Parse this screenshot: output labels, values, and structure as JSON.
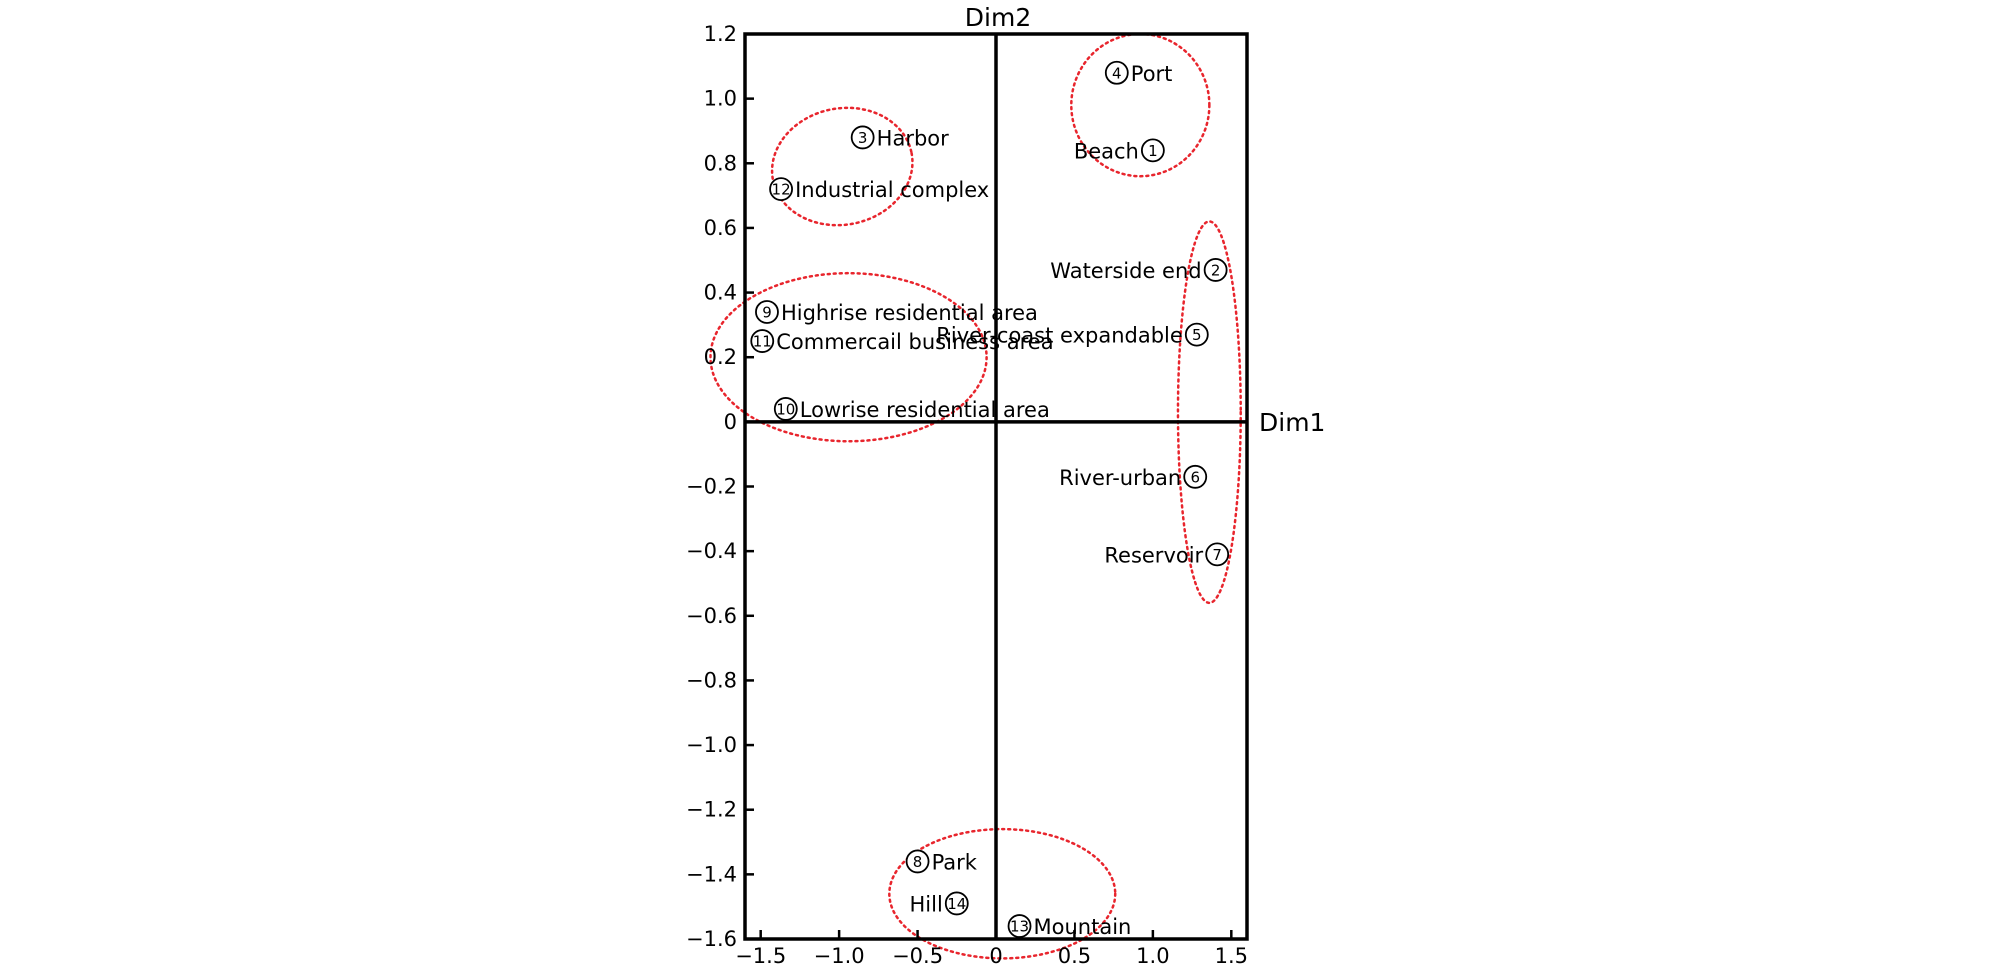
{
  "chart_data": {
    "type": "scatter",
    "title": "",
    "xlabel": "Dim1",
    "ylabel": "Dim2",
    "xlim": [
      -1.6,
      1.6
    ],
    "ylim": [
      -1.6,
      1.2
    ],
    "xticks": [
      "-1.5",
      "-1.0",
      "-0.5",
      "0",
      "0.5",
      "1.0",
      "1.5"
    ],
    "yticks": [
      "1.2",
      "1.0",
      "0.8",
      "0.6",
      "0.4",
      "0.2",
      "0",
      "-0.2",
      "-0.4",
      "-0.6",
      "-0.8",
      "-1.0",
      "-1.2",
      "-1.4",
      "-1.6"
    ],
    "points": [
      {
        "num": "1",
        "label": "Beach",
        "x": 1.0,
        "y": 0.84,
        "numSide": "right"
      },
      {
        "num": "2",
        "label": "Waterside end",
        "x": 1.4,
        "y": 0.47,
        "numSide": "right"
      },
      {
        "num": "3",
        "label": "Harbor",
        "x": -0.85,
        "y": 0.88,
        "numSide": "left"
      },
      {
        "num": "4",
        "label": "Port",
        "x": 0.77,
        "y": 1.08,
        "numSide": "left"
      },
      {
        "num": "5",
        "label": "River-coast expandable",
        "x": 1.28,
        "y": 0.27,
        "numSide": "right"
      },
      {
        "num": "6",
        "label": "River-urban",
        "x": 1.27,
        "y": -0.17,
        "numSide": "right"
      },
      {
        "num": "7",
        "label": "Reservoir",
        "x": 1.41,
        "y": -0.41,
        "numSide": "right"
      },
      {
        "num": "8",
        "label": "Park",
        "x": -0.5,
        "y": -1.36,
        "numSide": "left"
      },
      {
        "num": "9",
        "label": "Highrise residential area",
        "x": -1.46,
        "y": 0.34,
        "numSide": "left"
      },
      {
        "num": "10",
        "label": "Lowrise residential area",
        "x": -1.34,
        "y": 0.04,
        "numSide": "left"
      },
      {
        "num": "11",
        "label": "Commercail business area",
        "x": -1.49,
        "y": 0.25,
        "numSide": "left"
      },
      {
        "num": "12",
        "label": "Industrial complex",
        "x": -1.37,
        "y": 0.72,
        "numSide": "left"
      },
      {
        "num": "13",
        "label": "Mountain",
        "x": 0.15,
        "y": -1.56,
        "numSide": "left"
      },
      {
        "num": "14",
        "label": "Hill",
        "x": -0.25,
        "y": -1.49,
        "numSide": "right"
      }
    ],
    "clusters": [
      {
        "members": [
          "3",
          "12"
        ],
        "cx": -0.98,
        "cy": 0.79,
        "rx": 0.45,
        "ry": 0.18,
        "rotate": -11
      },
      {
        "members": [
          "1",
          "4"
        ],
        "cx": 0.92,
        "cy": 0.98,
        "rx": 0.44,
        "ry": 0.22,
        "rotate": 0
      },
      {
        "members": [
          "2",
          "5",
          "6",
          "7"
        ],
        "cx": 1.36,
        "cy": 0.03,
        "rx": 0.2,
        "ry": 0.59,
        "rotate": 0
      },
      {
        "members": [
          "9",
          "10",
          "11"
        ],
        "cx": -0.94,
        "cy": 0.2,
        "rx": 0.88,
        "ry": 0.26,
        "rotate": 0
      },
      {
        "members": [
          "8",
          "13",
          "14"
        ],
        "cx": 0.04,
        "cy": -1.46,
        "rx": 0.72,
        "ry": 0.2,
        "rotate": 0
      }
    ],
    "cluster_color": "#e8252d",
    "grid": false,
    "legend": "none"
  }
}
